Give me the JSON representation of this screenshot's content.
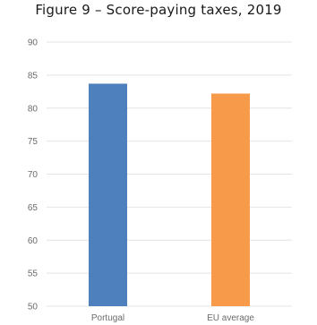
{
  "chart_data": {
    "type": "bar",
    "title": "Figure 9 – Score-paying taxes, 2019",
    "categories": [
      "Portugal",
      "EU average"
    ],
    "values": [
      83.7,
      82.2
    ],
    "colors": [
      "#4e80bd",
      "#f79a4a"
    ],
    "ylim": [
      50,
      90
    ],
    "yticks": [
      50,
      55,
      60,
      65,
      70,
      75,
      80,
      85,
      90
    ],
    "grid": true,
    "xlabel": "",
    "ylabel": ""
  }
}
